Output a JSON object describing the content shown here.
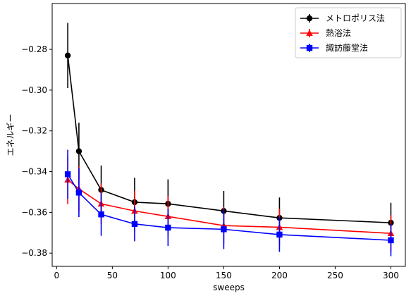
{
  "chart_data": {
    "type": "line",
    "title": "",
    "xlabel": "sweeps",
    "ylabel": "エネルギー",
    "xlim": [
      -4,
      313
    ],
    "ylim": [
      -0.3865,
      -0.2575
    ],
    "xticks": [
      0,
      50,
      100,
      150,
      200,
      250,
      300
    ],
    "xtick_labels": [
      "0",
      "50",
      "100",
      "150",
      "200",
      "250",
      "300"
    ],
    "yticks": [
      -0.38,
      -0.36,
      -0.34,
      -0.32,
      -0.3,
      -0.28
    ],
    "ytick_labels": [
      "−0.38",
      "−0.36",
      "−0.34",
      "−0.32",
      "−0.30",
      "−0.28"
    ],
    "grid": false,
    "legend_position": "top-right",
    "x": [
      10,
      20,
      40,
      70,
      100,
      150,
      200,
      300
    ],
    "series": [
      {
        "name": "メトロポリス法",
        "color": "#000000",
        "marker": "circle",
        "values": [
          -0.283,
          -0.33,
          -0.349,
          -0.355,
          -0.3558,
          -0.3593,
          -0.3627,
          -0.3651
        ],
        "errors": [
          0.016,
          0.014,
          0.012,
          0.012,
          0.012,
          0.0098,
          0.01,
          0.0098
        ]
      },
      {
        "name": "熱浴法",
        "color": "#ff0000",
        "marker": "triangle",
        "values": [
          -0.344,
          -0.3485,
          -0.3558,
          -0.3593,
          -0.362,
          -0.3665,
          -0.3673,
          -0.3703
        ],
        "errors": [
          0.012,
          0.011,
          0.01,
          0.01,
          0.01,
          0.009,
          0.009,
          0.009
        ]
      },
      {
        "name": "諏訪藤堂法",
        "color": "#0000ff",
        "marker": "square",
        "values": [
          -0.3413,
          -0.3503,
          -0.361,
          -0.3657,
          -0.3675,
          -0.3683,
          -0.3709,
          -0.3737
        ],
        "errors": [
          0.012,
          0.012,
          0.0105,
          0.0085,
          0.009,
          0.0097,
          0.0085,
          0.0078
        ]
      }
    ]
  }
}
